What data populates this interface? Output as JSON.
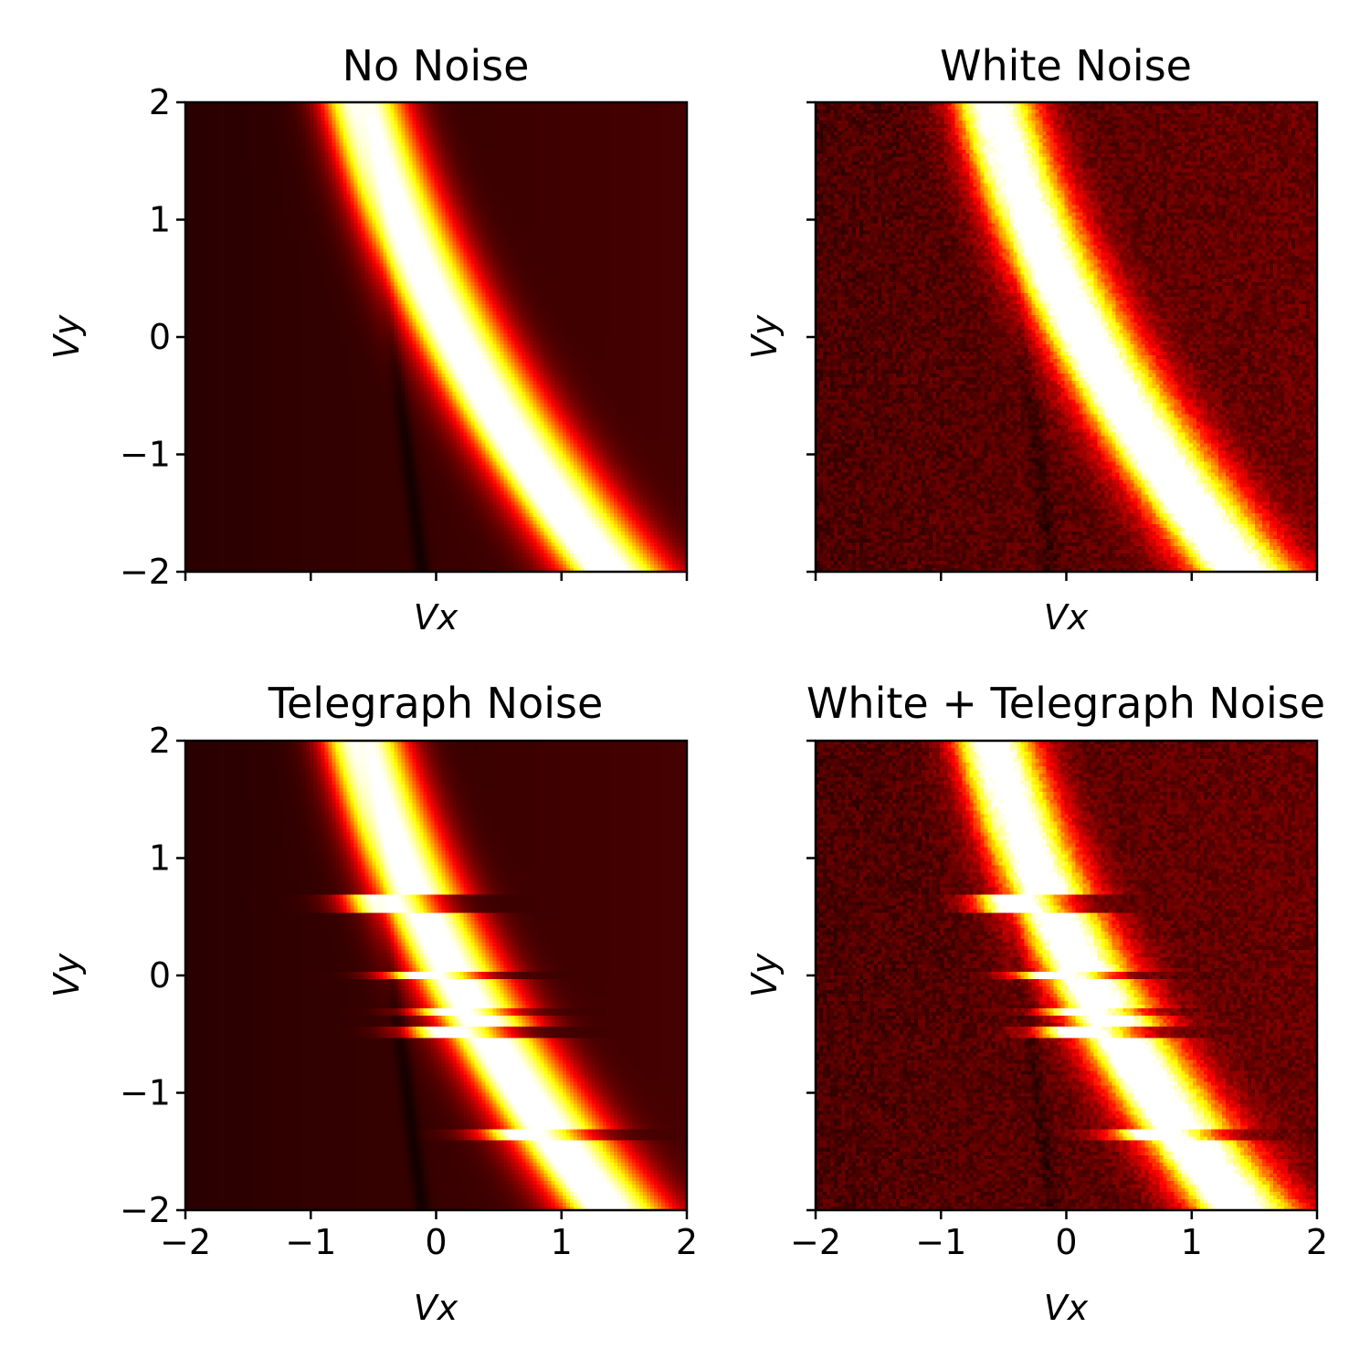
{
  "chart_data": [
    {
      "type": "heatmap",
      "title": "No Noise",
      "xlabel": "Vx",
      "ylabel": "Vy",
      "xlim": [
        -2,
        2
      ],
      "ylim": [
        -2,
        2
      ],
      "xticks": [
        -2,
        -1,
        0,
        1,
        2
      ],
      "yticks": [
        -2,
        -1,
        0,
        1,
        2
      ],
      "show_xtick_labels": false,
      "show_ytick_labels": true,
      "colormap": "hot",
      "white_noise": false,
      "telegraph_noise": false
    },
    {
      "type": "heatmap",
      "title": "White Noise",
      "xlabel": "Vx",
      "ylabel": "Vy",
      "xlim": [
        -2,
        2
      ],
      "ylim": [
        -2,
        2
      ],
      "xticks": [
        -2,
        -1,
        0,
        1,
        2
      ],
      "yticks": [
        -2,
        -1,
        0,
        1,
        2
      ],
      "show_xtick_labels": false,
      "show_ytick_labels": false,
      "colormap": "hot",
      "white_noise": true,
      "telegraph_noise": false
    },
    {
      "type": "heatmap",
      "title": "Telegraph Noise",
      "xlabel": "Vx",
      "ylabel": "Vy",
      "xlim": [
        -2,
        2
      ],
      "ylim": [
        -2,
        2
      ],
      "xticks": [
        -2,
        -1,
        0,
        1,
        2
      ],
      "yticks": [
        -2,
        -1,
        0,
        1,
        2
      ],
      "show_xtick_labels": true,
      "show_ytick_labels": true,
      "colormap": "hot",
      "white_noise": false,
      "telegraph_noise": true
    },
    {
      "type": "heatmap",
      "title": "White + Telegraph Noise",
      "xlabel": "Vx",
      "ylabel": "Vy",
      "xlim": [
        -2,
        2
      ],
      "ylim": [
        -2,
        2
      ],
      "xticks": [
        -2,
        -1,
        0,
        1,
        2
      ],
      "yticks": [
        -2,
        -1,
        0,
        1,
        2
      ],
      "show_xtick_labels": true,
      "show_ytick_labels": false,
      "colormap": "hot",
      "white_noise": true,
      "telegraph_noise": true
    }
  ]
}
